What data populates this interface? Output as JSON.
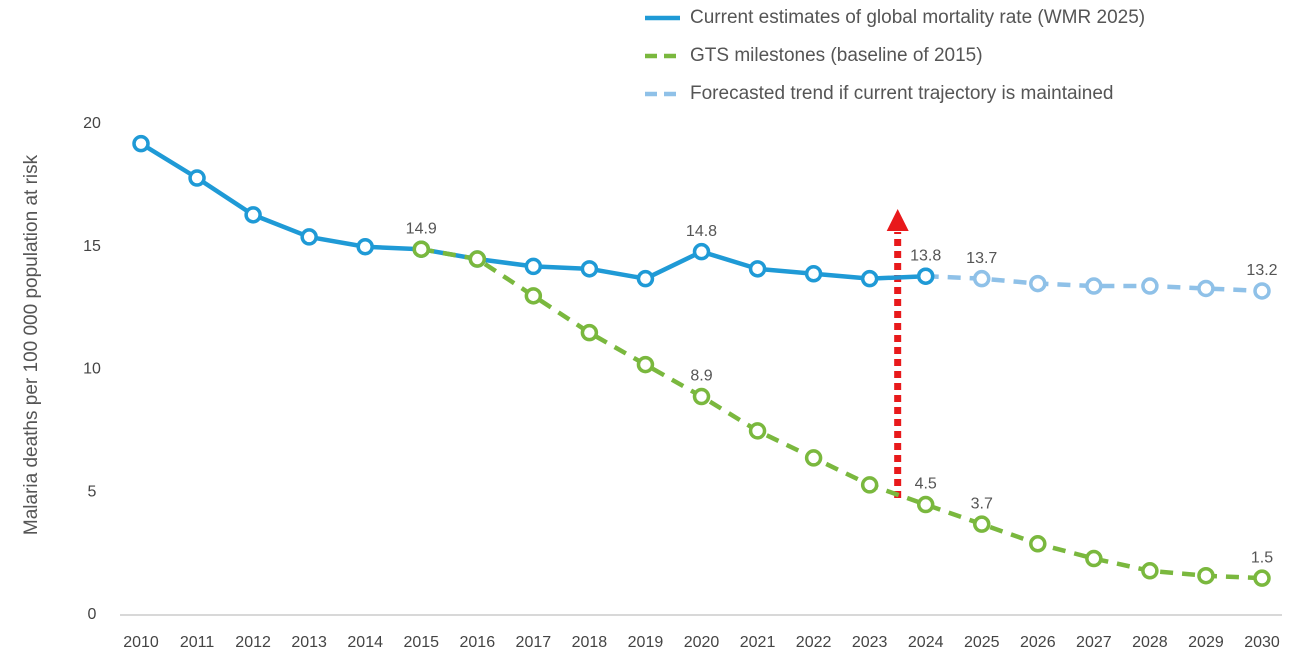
{
  "chart_data": {
    "type": "line",
    "y_label": "Malaria deaths per 100 000 population at risk",
    "categories": [
      "2010",
      "2011",
      "2012",
      "2013",
      "2014",
      "2015",
      "2016",
      "2017",
      "2018",
      "2019",
      "2020",
      "2021",
      "2022",
      "2023",
      "2024",
      "2025",
      "2026",
      "2027",
      "2028",
      "2029",
      "2030"
    ],
    "ylim": [
      0,
      20
    ],
    "yticks": [
      0,
      5,
      10,
      15,
      20
    ],
    "grid": false,
    "legend": "top-right",
    "series": [
      {
        "name": "Forecasted trend if current trajectory is maintained",
        "color": "#8fc1e8",
        "dashed": true,
        "values": [
          null,
          null,
          null,
          null,
          null,
          null,
          null,
          null,
          null,
          null,
          null,
          null,
          null,
          null,
          13.8,
          13.7,
          13.5,
          13.4,
          13.4,
          13.3,
          13.2
        ],
        "value_labels": [
          null,
          null,
          null,
          null,
          null,
          null,
          null,
          null,
          null,
          null,
          null,
          null,
          null,
          null,
          null,
          "13.7",
          null,
          null,
          null,
          null,
          "13.2"
        ]
      },
      {
        "name": "Current estimates of global mortality rate (WMR 2025)",
        "color": "#1f9ad6",
        "dashed": false,
        "values": [
          19.2,
          17.8,
          16.3,
          15.4,
          15.0,
          14.9,
          14.5,
          14.2,
          14.1,
          13.7,
          14.8,
          14.1,
          13.9,
          13.7,
          13.8,
          null,
          null,
          null,
          null,
          null,
          null
        ],
        "value_labels": [
          null,
          null,
          null,
          null,
          null,
          "14.9",
          null,
          null,
          null,
          null,
          "14.8",
          null,
          null,
          null,
          "13.8",
          null,
          null,
          null,
          null,
          null,
          null
        ]
      },
      {
        "name": "GTS milestones (baseline of 2015)",
        "color": "#7ab83e",
        "dashed": true,
        "values": [
          null,
          null,
          null,
          null,
          null,
          14.9,
          14.5,
          13.0,
          11.5,
          10.2,
          8.9,
          7.5,
          6.4,
          5.3,
          4.5,
          3.7,
          2.9,
          2.3,
          1.8,
          1.6,
          1.5
        ],
        "value_labels": [
          null,
          null,
          null,
          null,
          null,
          null,
          null,
          null,
          null,
          null,
          "8.9",
          null,
          null,
          null,
          "4.5",
          "3.7",
          null,
          null,
          null,
          null,
          "1.5"
        ]
      }
    ]
  }
}
